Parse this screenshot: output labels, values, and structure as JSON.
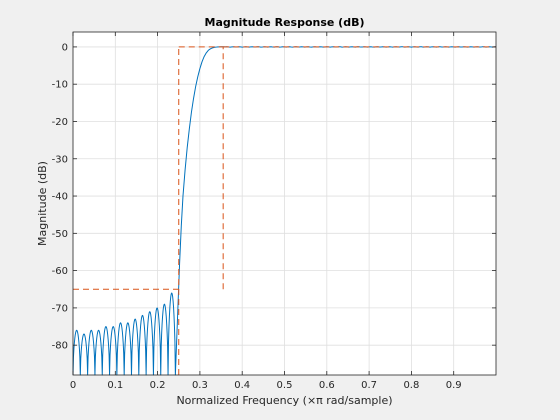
{
  "window": {
    "background": "#f0f0f0"
  },
  "chart_data": {
    "type": "line",
    "title": "Magnitude Response (dB)",
    "xlabel": "Normalized Frequency (×π rad/sample)",
    "ylabel": "Magnitude (dB)",
    "xlim": [
      0,
      1
    ],
    "ylim": [
      -88,
      4
    ],
    "xticks": [
      0,
      0.1,
      0.2,
      0.3,
      0.4,
      0.5,
      0.6,
      0.7,
      0.8,
      0.9
    ],
    "xtick_labels": [
      "0",
      "0.1",
      "0.2",
      "0.3",
      "0.4",
      "0.5",
      "0.6",
      "0.7",
      "0.8",
      "0.9"
    ],
    "yticks": [
      0,
      -10,
      -20,
      -30,
      -40,
      -50,
      -60,
      -70,
      -80
    ],
    "ytick_labels": [
      "0",
      "-10",
      "-20",
      "-30",
      "-40",
      "-50",
      "-60",
      "-70",
      "-80"
    ],
    "grid": true,
    "legend": "none",
    "colors": {
      "response": "#0072bd",
      "mask": "#d95319",
      "grid": "#dfdfdf",
      "axes": "#262626",
      "plot_bg": "#ffffff"
    },
    "series": [
      {
        "style": "solid",
        "stopband_lobes": {
          "x_start": 0.0,
          "x_end": 0.242,
          "count": 14,
          "floor": -88,
          "peaks": [
            -76,
            -77,
            -76,
            -76,
            -75,
            -75,
            -74,
            -74,
            -73,
            -72,
            -71,
            -70,
            -69,
            -66
          ]
        },
        "transition": {
          "x": [
            0.242,
            0.248,
            0.252,
            0.256,
            0.26,
            0.265,
            0.27,
            0.275,
            0.28,
            0.285,
            0.29,
            0.295,
            0.3,
            0.305,
            0.31,
            0.315,
            0.32,
            0.325,
            0.33,
            0.335,
            0.34,
            0.345,
            0.35,
            0.355,
            0.36
          ],
          "y": [
            -88,
            -70,
            -58,
            -48,
            -40,
            -33,
            -27,
            -22,
            -17.5,
            -13.8,
            -10.6,
            -8,
            -5.8,
            -4,
            -2.6,
            -1.6,
            -0.9,
            -0.5,
            -0.25,
            -0.1,
            -0.04,
            0,
            0.05,
            0.04,
            0
          ]
        },
        "passband": {
          "x_start": 0.36,
          "x_end": 1.0,
          "ripple_db": 0.05
        }
      },
      {
        "style": "dashed",
        "x": [
          0,
          0.25,
          0.25,
          0.25,
          0.25,
          0.355,
          0.355,
          1.0
        ],
        "y": [
          -65,
          -65,
          -88,
          0,
          0,
          0,
          -65,
          0
        ],
        "segments": [
          {
            "x": [
              0,
              0.25
            ],
            "y": [
              -65,
              -65
            ]
          },
          {
            "x": [
              0.25,
              0.25
            ],
            "y": [
              -88,
              0
            ]
          },
          {
            "x": [
              0.25,
              0.355
            ],
            "y": [
              0,
              0
            ]
          },
          {
            "x": [
              0.355,
              0.355
            ],
            "y": [
              -65,
              0
            ]
          },
          {
            "x": [
              0.355,
              1.0
            ],
            "y": [
              0,
              0
            ]
          }
        ]
      }
    ]
  }
}
